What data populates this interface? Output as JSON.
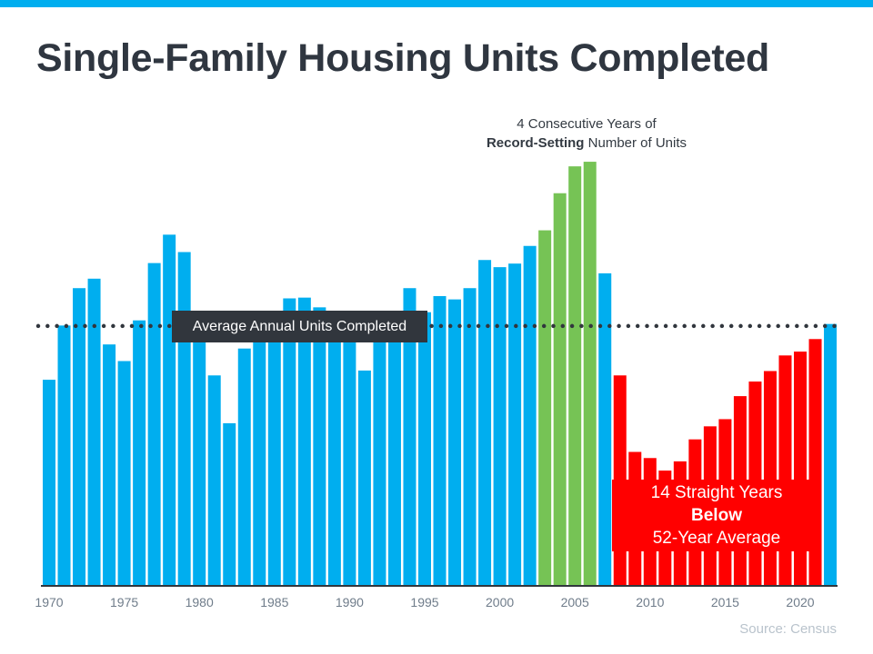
{
  "title": "Single-Family Housing Units Completed",
  "source": "Source: Census",
  "annotations": {
    "record_line1": "4 Consecutive Years of",
    "record_bold": "Record-Setting",
    "record_rest": " Number of Units",
    "average_label": "Average Annual Units Completed",
    "below_line1": "14 Straight Years",
    "below_line2": "Below",
    "below_line3": "52-Year Average"
  },
  "colors": {
    "normal": "#00aeef",
    "record": "#76c355",
    "below": "#ff0000",
    "axis": "#31363d",
    "average_line": "#31363d"
  },
  "chart_data": {
    "type": "bar",
    "title": "Single-Family Housing Units Completed",
    "xlabel": "",
    "ylabel": "",
    "grid": false,
    "x_ticks": [
      1970,
      1975,
      1980,
      1985,
      1990,
      1995,
      2000,
      2005,
      2010,
      2015,
      2020
    ],
    "categories": [
      1970,
      1971,
      1972,
      1973,
      1974,
      1975,
      1976,
      1977,
      1978,
      1979,
      1980,
      1981,
      1982,
      1983,
      1984,
      1985,
      1986,
      1987,
      1988,
      1989,
      1990,
      1991,
      1992,
      1993,
      1994,
      1995,
      1996,
      1997,
      1998,
      1999,
      2000,
      2001,
      2002,
      2003,
      2004,
      2005,
      2006,
      2007,
      2008,
      2009,
      2010,
      2011,
      2012,
      2013,
      2014,
      2015,
      2016,
      2017,
      2018,
      2019,
      2020,
      2021,
      2022
    ],
    "values": [
      802,
      1014,
      1160,
      1197,
      940,
      875,
      1034,
      1258,
      1369,
      1301,
      957,
      819,
      632,
      924,
      1025,
      1072,
      1120,
      1123,
      1085,
      1026,
      966,
      838,
      964,
      1039,
      1160,
      1066,
      1129,
      1116,
      1160,
      1270,
      1242,
      1256,
      1325,
      1386,
      1531,
      1636,
      1654,
      1218,
      819,
      520,
      496,
      447,
      483,
      569,
      620,
      648,
      738,
      795,
      836,
      897,
      912,
      961,
      1020
    ],
    "average": 1012,
    "record_years": [
      2003,
      2004,
      2005,
      2006
    ],
    "below_years": [
      2008,
      2021
    ],
    "ylim": [
      0,
      1700
    ]
  }
}
